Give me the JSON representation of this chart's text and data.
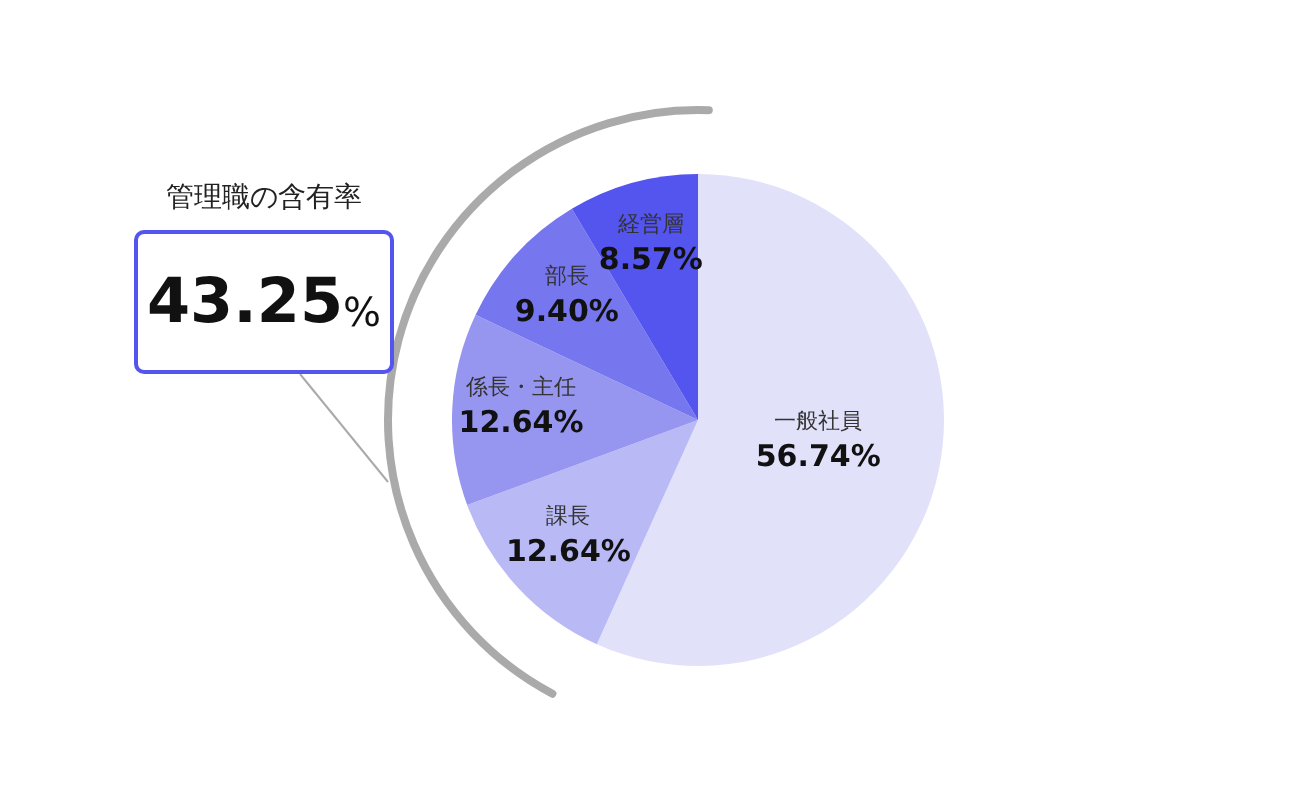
{
  "chart_data": {
    "type": "pie",
    "categories": [
      "一般社員",
      "課長",
      "係長・主任",
      "部長",
      "経営層"
    ],
    "values": [
      56.74,
      12.64,
      12.64,
      9.4,
      8.57
    ],
    "colors": [
      "#e1e1fa",
      "#b9b9f6",
      "#9696f1",
      "#7676ef",
      "#5454ef"
    ],
    "value_labels": [
      "56.74%",
      "12.64%",
      "12.64%",
      "9.40%",
      "8.57%"
    ],
    "annotations": [
      "管理職の含有率",
      "43.25%"
    ]
  }
}
